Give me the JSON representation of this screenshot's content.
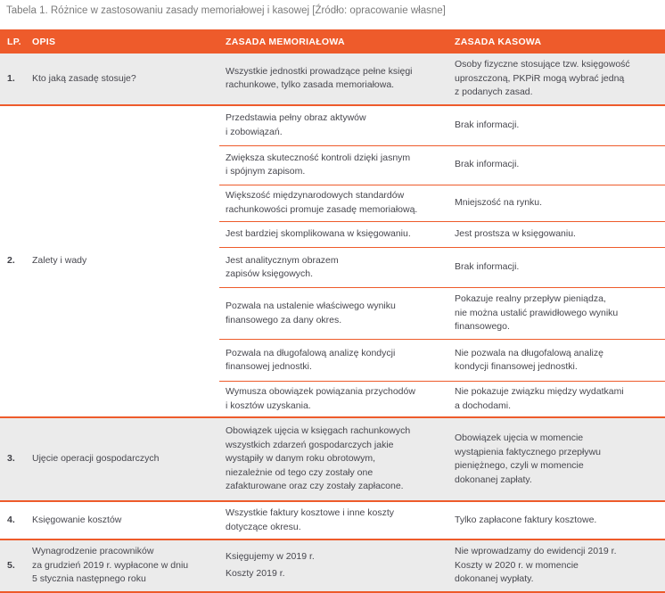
{
  "caption": "Tabela 1. Różnice w zastosowaniu zasady memoriałowej i kasowej [Źródło: opracowanie własne]",
  "colors": {
    "accent_orange": "#ee5b2b",
    "shaded_row_bg": "#ebebeb",
    "body_text": "#47474e",
    "caption_text": "#7b7b7b",
    "header_text": "#ffffff"
  },
  "header": {
    "lp": "LP.",
    "opis": "OPIS",
    "mem": "ZASADA MEMORIAŁOWA",
    "kas": "ZASADA KASOWA"
  },
  "rows": [
    {
      "lp": "1.",
      "opis": "Kto jaką zasadę stosuje?",
      "cells": [
        {
          "mem": "Wszystkie jednostki prowadzące pełne księgi\nrachunkowe, tylko zasada memoriałowa.",
          "kas": "Osoby fizyczne stosujące tzw. księgowość\nuproszczoną, PKPiR mogą wybrać jedną\nz podanych zasad."
        }
      ]
    },
    {
      "lp": "2.",
      "opis": "Zalety i wady",
      "cells": [
        {
          "mem": "Przedstawia pełny obraz aktywów\ni zobowiązań.",
          "kas": "Brak informacji."
        },
        {
          "mem": "Zwiększa skuteczność kontroli dzięki jasnym\ni spójnym zapisom.",
          "kas": "Brak informacji."
        },
        {
          "mem": "Większość międzynarodowych standardów\nrachunkowości promuje zasadę memoriałową.",
          "kas": "Mniejszość na rynku."
        },
        {
          "mem": "Jest bardziej skomplikowana w księgowaniu.",
          "kas": "Jest prostsza w księgowaniu."
        },
        {
          "mem": "Jest analitycznym obrazem\nzapisów księgowych.",
          "kas": "Brak informacji."
        },
        {
          "mem": "Pozwala na ustalenie właściwego wyniku\nfinansowego za dany okres.",
          "kas": "Pokazuje realny przepływ pieniądza,\nnie można ustalić prawidłowego wyniku\nfinansowego."
        },
        {
          "mem": "Pozwala na długofalową analizę kondycji\nfinansowej jednostki.",
          "kas": "Nie pozwala na długofalową analizę\nkondycji finansowej jednostki."
        },
        {
          "mem": "Wymusza obowiązek powiązania przychodów\ni kosztów uzyskania.",
          "kas": "Nie pokazuje związku między wydatkami\na dochodami."
        }
      ]
    },
    {
      "lp": "3.",
      "opis": "Ujęcie operacji gospodarczych",
      "cells": [
        {
          "mem": "Obowiązek ujęcia w księgach rachunkowych\nwszystkich zdarzeń gospodarczych jakie\nwystąpiły w danym roku obrotowym,\nniezależnie od tego czy zostały one\nzafakturowane oraz czy zostały zapłacone.",
          "kas": "Obowiązek ujęcia w momencie\nwystąpienia faktycznego przepływu\npieniężnego, czyli w momencie\ndokonanej zapłaty."
        }
      ]
    },
    {
      "lp": "4.",
      "opis": "Księgowanie kosztów",
      "cells": [
        {
          "mem": "Wszystkie faktury kosztowe i inne koszty\ndotyczące okresu.",
          "kas": "Tylko zapłacone faktury kosztowe."
        }
      ]
    },
    {
      "lp": "5.",
      "opis": "Wynagrodzenie pracowników\nza grudzień 2019 r. wypłacone w dniu\n5 stycznia następnego roku",
      "cells": [
        {
          "mem": "Księgujemy w 2019 r.\nKoszty 2019 r.",
          "kas": "Nie wprowadzamy do ewidencji 2019 r.\nKoszty w 2020 r. w momencie\ndokonanej wypłaty."
        }
      ]
    }
  ]
}
